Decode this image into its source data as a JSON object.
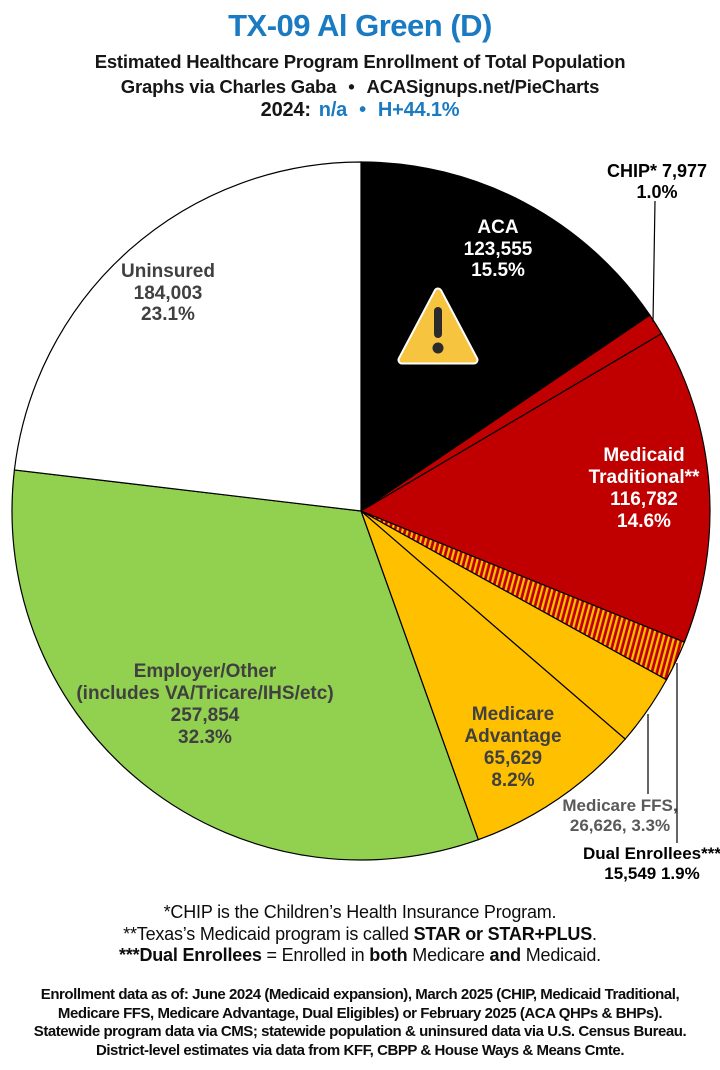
{
  "header": {
    "title": "TX-09 Al Green (D)",
    "subtitle": "Estimated Healthcare Program Enrollment of Total Population",
    "credit_author": "Graphs via Charles Gaba",
    "bullet": "•",
    "credit_site": "ACASignups.net/PieCharts",
    "year_label": "2024:",
    "year_value": "n/a",
    "hplus": "H+44.1%"
  },
  "chart_data": {
    "type": "pie",
    "title": "TX-09 Al Green (D) — Estimated Healthcare Program Enrollment of Total Population",
    "units": "people",
    "start_angle_deg": 0,
    "direction": "clockwise",
    "legend_position": "labels-on-chart",
    "slices": [
      {
        "id": "aca",
        "name": "ACA",
        "value": 123555,
        "pct": 15.5,
        "fill": "#000000",
        "label": [
          "ACA",
          "123,555",
          "15.5%"
        ]
      },
      {
        "id": "chip",
        "name": "CHIP",
        "value": 7977,
        "pct": 1.0,
        "fill": "#C00000",
        "label": [
          "CHIP* 7,977",
          "1.0%"
        ]
      },
      {
        "id": "medicaid-traditional",
        "name": "Medicaid Traditional",
        "value": 116782,
        "pct": 14.6,
        "fill": "#C00000",
        "label": [
          "Medicaid",
          "Traditional**",
          "116,782",
          "14.6%"
        ]
      },
      {
        "id": "dual-enrollees",
        "name": "Dual Enrollees",
        "value": 15549,
        "pct": 1.9,
        "fill": "hatch",
        "label": [
          "Dual Enrollees***",
          "15,549 1.9%"
        ]
      },
      {
        "id": "medicare-ffs",
        "name": "Medicare FFS",
        "value": 26626,
        "pct": 3.3,
        "fill": "#FFC000",
        "label": [
          "Medicare FFS,",
          "26,626, 3.3%"
        ]
      },
      {
        "id": "medicare-advantage",
        "name": "Medicare Advantage",
        "value": 65629,
        "pct": 8.2,
        "fill": "#FFC000",
        "label": [
          "Medicare",
          "Advantage",
          "65,629",
          "8.2%"
        ]
      },
      {
        "id": "employer-other",
        "name": "Employer/Other (includes VA/Tricare/IHS/etc)",
        "value": 257854,
        "pct": 32.3,
        "fill": "#92D050",
        "label": [
          "Employer/Other",
          "(includes VA/Tricare/IHS/etc)",
          "257,854",
          "32.3%"
        ]
      },
      {
        "id": "uninsured",
        "name": "Uninsured",
        "value": 184003,
        "pct": 23.1,
        "fill": "#FFFFFF",
        "label": [
          "Uninsured",
          "184,003",
          "23.1%"
        ]
      }
    ],
    "colors": {
      "accent_blue": "#1A7BC2",
      "red": "#C00000",
      "gold": "#FFC000",
      "green": "#92D050",
      "black": "#000000",
      "white": "#FFFFFF",
      "hatch_stripes": "#FFC000 on #C00000"
    }
  },
  "footnotes": {
    "line1": "*CHIP is the Children’s Health Insurance Program.",
    "line2_prefix": "**Texas’s Medicaid program is called ",
    "line2_bold": "STAR or STAR+PLUS",
    "line2_suffix": ".",
    "line3_bold1": "***Dual Enrollees",
    "line3_mid1": " = Enrolled in ",
    "line3_bold2": "both",
    "line3_mid2": " Medicare ",
    "line3_bold3": "and",
    "line3_suffix": " Medicaid."
  },
  "source": {
    "lines": [
      "Enrollment data as of: June 2024 (Medicaid expansion), March 2025 (CHIP, Medicaid Traditional,",
      "Medicare FFS, Medicare Advantage, Dual Eligibles) or February 2025 (ACA QHPs & BHPs).",
      "Statewide program data via CMS; statewide population & uninsured data via U.S. Census Bureau.",
      "District-level estimates via data from KFF, CBPP & House Ways & Means Cmte."
    ]
  }
}
